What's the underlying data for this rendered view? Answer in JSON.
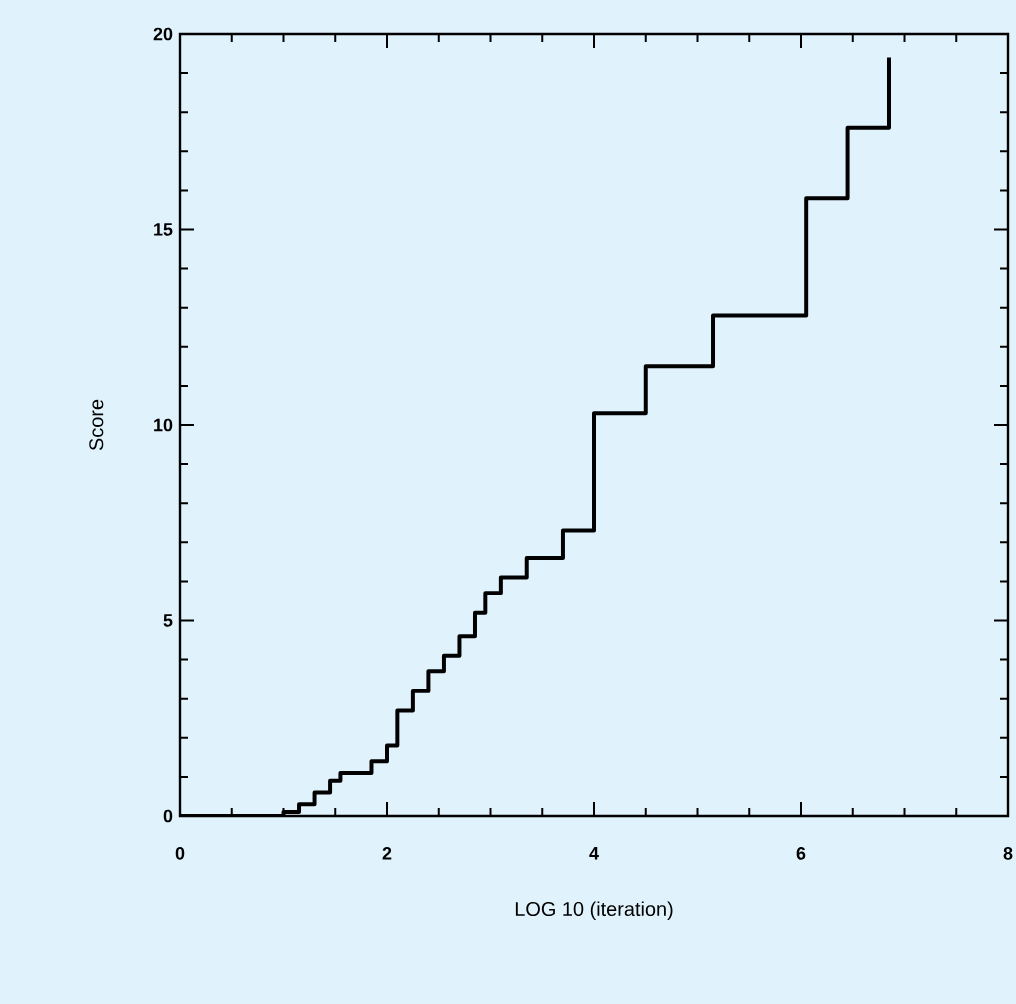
{
  "chart_data": {
    "type": "step",
    "xlabel": "LOG 10 (iteration)",
    "ylabel": "Score",
    "x": [
      0,
      1.0,
      1.15,
      1.3,
      1.45,
      1.55,
      1.85,
      2.0,
      2.1,
      2.25,
      2.4,
      2.55,
      2.7,
      2.85,
      2.95,
      3.1,
      3.35,
      3.7,
      4.0,
      4.5,
      5.15,
      6.05,
      6.45,
      6.85
    ],
    "values": [
      0,
      0.1,
      0.3,
      0.6,
      0.9,
      1.1,
      1.4,
      1.8,
      2.7,
      3.2,
      3.7,
      4.1,
      4.6,
      5.2,
      5.7,
      6.1,
      6.6,
      7.3,
      10.3,
      11.5,
      12.8,
      15.8,
      17.6,
      19.4
    ],
    "color": "#000000",
    "xlim": [
      0,
      8
    ],
    "ylim": [
      0,
      20
    ],
    "xticks": [
      0,
      2,
      4,
      6,
      8
    ],
    "yticks": [
      0,
      5,
      10,
      15,
      20
    ],
    "grid": false,
    "marker": "none",
    "line_style": "solid"
  }
}
